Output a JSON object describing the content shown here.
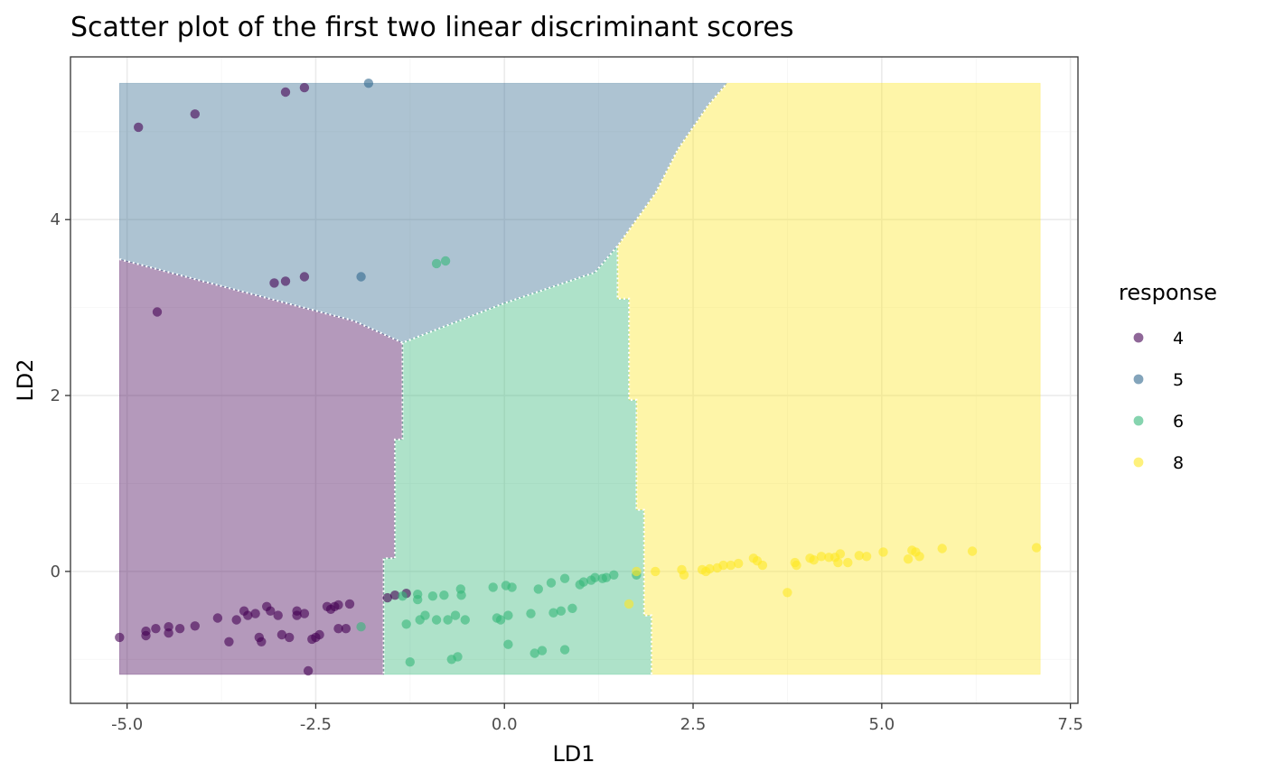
{
  "chart_data": {
    "type": "scatter",
    "title": "Scatter plot of the first two linear discriminant scores",
    "xlabel": "LD1",
    "ylabel": "LD2",
    "xlim": [
      -5.75,
      7.6
    ],
    "ylim": [
      -1.5,
      5.85
    ],
    "grid": true,
    "x_ticks": [
      -5.0,
      -2.5,
      0.0,
      2.5,
      5.0,
      7.5
    ],
    "x_tick_labels": [
      "-5.0",
      "-2.5",
      "0.0",
      "2.5",
      "5.0",
      "7.5"
    ],
    "y_ticks": [
      0,
      2,
      4
    ],
    "y_tick_labels": [
      "0",
      "2",
      "4"
    ],
    "legend": {
      "title": "response",
      "position": "right"
    },
    "regions": [
      {
        "class": "4",
        "color": "#440154",
        "polygon": [
          [
            -5.1,
            -1.17
          ],
          [
            -1.6,
            -1.17
          ],
          [
            -1.6,
            0.15
          ],
          [
            -1.45,
            0.15
          ],
          [
            -1.45,
            1.5
          ],
          [
            -1.35,
            1.5
          ],
          [
            -1.35,
            2.6
          ],
          [
            -2.0,
            2.85
          ],
          [
            -4.0,
            3.3
          ],
          [
            -5.1,
            3.55
          ]
        ]
      },
      {
        "class": "5",
        "color": "#31688E",
        "polygon": [
          [
            -5.1,
            3.55
          ],
          [
            -4.0,
            3.3
          ],
          [
            -2.0,
            2.85
          ],
          [
            -1.35,
            2.6
          ],
          [
            0.0,
            3.05
          ],
          [
            1.2,
            3.4
          ],
          [
            1.5,
            3.7
          ],
          [
            2.0,
            4.3
          ],
          [
            2.3,
            4.8
          ],
          [
            2.7,
            5.3
          ],
          [
            2.95,
            5.55
          ],
          [
            -5.1,
            5.55
          ]
        ]
      },
      {
        "class": "6",
        "color": "#35B779",
        "polygon": [
          [
            -1.6,
            -1.17
          ],
          [
            1.95,
            -1.17
          ],
          [
            1.95,
            -0.5
          ],
          [
            1.85,
            -0.5
          ],
          [
            1.85,
            0.7
          ],
          [
            1.75,
            0.7
          ],
          [
            1.75,
            1.95
          ],
          [
            1.65,
            1.95
          ],
          [
            1.65,
            3.1
          ],
          [
            1.5,
            3.1
          ],
          [
            1.5,
            3.7
          ],
          [
            1.2,
            3.4
          ],
          [
            0.0,
            3.05
          ],
          [
            -1.35,
            2.6
          ],
          [
            -1.35,
            1.5
          ],
          [
            -1.45,
            1.5
          ],
          [
            -1.45,
            0.15
          ],
          [
            -1.6,
            0.15
          ]
        ]
      },
      {
        "class": "8",
        "color": "#FDE725",
        "polygon": [
          [
            1.95,
            -1.17
          ],
          [
            7.1,
            -1.17
          ],
          [
            7.1,
            5.55
          ],
          [
            2.95,
            5.55
          ],
          [
            2.7,
            5.3
          ],
          [
            2.3,
            4.8
          ],
          [
            2.0,
            4.3
          ],
          [
            1.5,
            3.7
          ],
          [
            1.5,
            3.1
          ],
          [
            1.65,
            3.1
          ],
          [
            1.65,
            1.95
          ],
          [
            1.75,
            1.95
          ],
          [
            1.75,
            0.7
          ],
          [
            1.85,
            0.7
          ],
          [
            1.85,
            -0.5
          ],
          [
            1.95,
            -0.5
          ]
        ]
      }
    ],
    "boundaries": [
      [
        [
          -5.1,
          3.55
        ],
        [
          -4.0,
          3.3
        ],
        [
          -2.0,
          2.85
        ],
        [
          -1.35,
          2.6
        ],
        [
          0.0,
          3.05
        ],
        [
          1.2,
          3.4
        ],
        [
          1.5,
          3.7
        ],
        [
          2.0,
          4.3
        ],
        [
          2.3,
          4.8
        ],
        [
          2.7,
          5.3
        ],
        [
          2.95,
          5.55
        ]
      ],
      [
        [
          -1.35,
          2.6
        ],
        [
          -1.35,
          1.5
        ],
        [
          -1.45,
          1.5
        ],
        [
          -1.45,
          0.15
        ],
        [
          -1.6,
          0.15
        ],
        [
          -1.6,
          -1.17
        ]
      ],
      [
        [
          1.5,
          3.7
        ],
        [
          1.5,
          3.1
        ],
        [
          1.65,
          3.1
        ],
        [
          1.65,
          1.95
        ],
        [
          1.75,
          1.95
        ],
        [
          1.75,
          0.7
        ],
        [
          1.85,
          0.7
        ],
        [
          1.85,
          -0.5
        ],
        [
          1.95,
          -0.5
        ],
        [
          1.95,
          -1.17
        ]
      ]
    ],
    "series": [
      {
        "name": "4",
        "color": "#440154",
        "points": [
          [
            -4.85,
            5.05
          ],
          [
            -4.1,
            5.2
          ],
          [
            -2.9,
            5.45
          ],
          [
            -2.65,
            5.5
          ],
          [
            -3.05,
            3.28
          ],
          [
            -2.9,
            3.3
          ],
          [
            -2.65,
            3.35
          ],
          [
            -4.6,
            2.95
          ],
          [
            -5.1,
            -0.75
          ],
          [
            -4.75,
            -0.68
          ],
          [
            -4.75,
            -0.73
          ],
          [
            -4.62,
            -0.65
          ],
          [
            -4.45,
            -0.63
          ],
          [
            -4.45,
            -0.7
          ],
          [
            -4.3,
            -0.65
          ],
          [
            -4.1,
            -0.62
          ],
          [
            -3.8,
            -0.53
          ],
          [
            -3.65,
            -0.8
          ],
          [
            -3.55,
            -0.55
          ],
          [
            -3.45,
            -0.45
          ],
          [
            -3.4,
            -0.5
          ],
          [
            -3.3,
            -0.48
          ],
          [
            -3.25,
            -0.75
          ],
          [
            -3.22,
            -0.8
          ],
          [
            -3.15,
            -0.4
          ],
          [
            -3.1,
            -0.45
          ],
          [
            -3.0,
            -0.5
          ],
          [
            -2.95,
            -0.72
          ],
          [
            -2.85,
            -0.75
          ],
          [
            -2.75,
            -0.45
          ],
          [
            -2.75,
            -0.5
          ],
          [
            -2.65,
            -0.48
          ],
          [
            -2.55,
            -0.77
          ],
          [
            -2.5,
            -0.75
          ],
          [
            -2.45,
            -0.72
          ],
          [
            -2.35,
            -0.4
          ],
          [
            -2.3,
            -0.43
          ],
          [
            -2.25,
            -0.4
          ],
          [
            -2.2,
            -0.38
          ],
          [
            -2.2,
            -0.65
          ],
          [
            -2.1,
            -0.65
          ],
          [
            -2.05,
            -0.37
          ],
          [
            -2.6,
            -1.13
          ],
          [
            -1.55,
            -0.3
          ],
          [
            -1.45,
            -0.27
          ],
          [
            -1.3,
            -0.25
          ]
        ]
      },
      {
        "name": "5",
        "color": "#31688E",
        "points": [
          [
            -1.8,
            5.55
          ],
          [
            -1.9,
            3.35
          ]
        ]
      },
      {
        "name": "6",
        "color": "#35B779",
        "points": [
          [
            -0.9,
            3.5
          ],
          [
            -0.78,
            3.53
          ],
          [
            -1.9,
            -0.63
          ],
          [
            -1.35,
            -0.28
          ],
          [
            -1.3,
            -0.6
          ],
          [
            -1.25,
            -1.03
          ],
          [
            -1.15,
            -0.26
          ],
          [
            -1.15,
            -0.32
          ],
          [
            -1.12,
            -0.55
          ],
          [
            -1.05,
            -0.5
          ],
          [
            -0.95,
            -0.28
          ],
          [
            -0.9,
            -0.55
          ],
          [
            -0.8,
            -0.27
          ],
          [
            -0.75,
            -0.55
          ],
          [
            -0.7,
            -1.0
          ],
          [
            -0.65,
            -0.5
          ],
          [
            -0.62,
            -0.97
          ],
          [
            -0.58,
            -0.2
          ],
          [
            -0.57,
            -0.27
          ],
          [
            -0.52,
            -0.55
          ],
          [
            -0.15,
            -0.18
          ],
          [
            -0.1,
            -0.53
          ],
          [
            -0.05,
            -0.55
          ],
          [
            0.02,
            -0.16
          ],
          [
            0.05,
            -0.5
          ],
          [
            0.05,
            -0.83
          ],
          [
            0.1,
            -0.18
          ],
          [
            0.35,
            -0.48
          ],
          [
            0.4,
            -0.93
          ],
          [
            0.45,
            -0.2
          ],
          [
            0.5,
            -0.9
          ],
          [
            0.62,
            -0.13
          ],
          [
            0.65,
            -0.47
          ],
          [
            0.75,
            -0.45
          ],
          [
            0.8,
            -0.08
          ],
          [
            0.8,
            -0.89
          ],
          [
            0.9,
            -0.42
          ],
          [
            1.0,
            -0.15
          ],
          [
            1.05,
            -0.12
          ],
          [
            1.15,
            -0.1
          ],
          [
            1.2,
            -0.07
          ],
          [
            1.3,
            -0.08
          ],
          [
            1.35,
            -0.07
          ],
          [
            1.45,
            -0.04
          ],
          [
            1.75,
            -0.04
          ]
        ]
      },
      {
        "name": "8",
        "color": "#FDE725",
        "points": [
          [
            1.65,
            -0.37
          ],
          [
            1.75,
            0.0
          ],
          [
            2.0,
            0.0
          ],
          [
            2.35,
            0.02
          ],
          [
            2.38,
            -0.04
          ],
          [
            2.62,
            0.02
          ],
          [
            2.67,
            0.0
          ],
          [
            2.72,
            0.03
          ],
          [
            2.82,
            0.04
          ],
          [
            2.9,
            0.07
          ],
          [
            3.0,
            0.07
          ],
          [
            3.1,
            0.09
          ],
          [
            3.3,
            0.15
          ],
          [
            3.35,
            0.12
          ],
          [
            3.42,
            0.07
          ],
          [
            3.75,
            -0.24
          ],
          [
            3.85,
            0.1
          ],
          [
            3.87,
            0.07
          ],
          [
            4.05,
            0.15
          ],
          [
            4.1,
            0.13
          ],
          [
            4.2,
            0.17
          ],
          [
            4.3,
            0.16
          ],
          [
            4.38,
            0.16
          ],
          [
            4.42,
            0.1
          ],
          [
            4.45,
            0.2
          ],
          [
            4.55,
            0.1
          ],
          [
            4.7,
            0.18
          ],
          [
            4.8,
            0.17
          ],
          [
            5.02,
            0.22
          ],
          [
            5.35,
            0.14
          ],
          [
            5.4,
            0.24
          ],
          [
            5.45,
            0.22
          ],
          [
            5.5,
            0.17
          ],
          [
            5.8,
            0.26
          ],
          [
            6.2,
            0.23
          ],
          [
            7.05,
            0.27
          ]
        ]
      }
    ]
  }
}
